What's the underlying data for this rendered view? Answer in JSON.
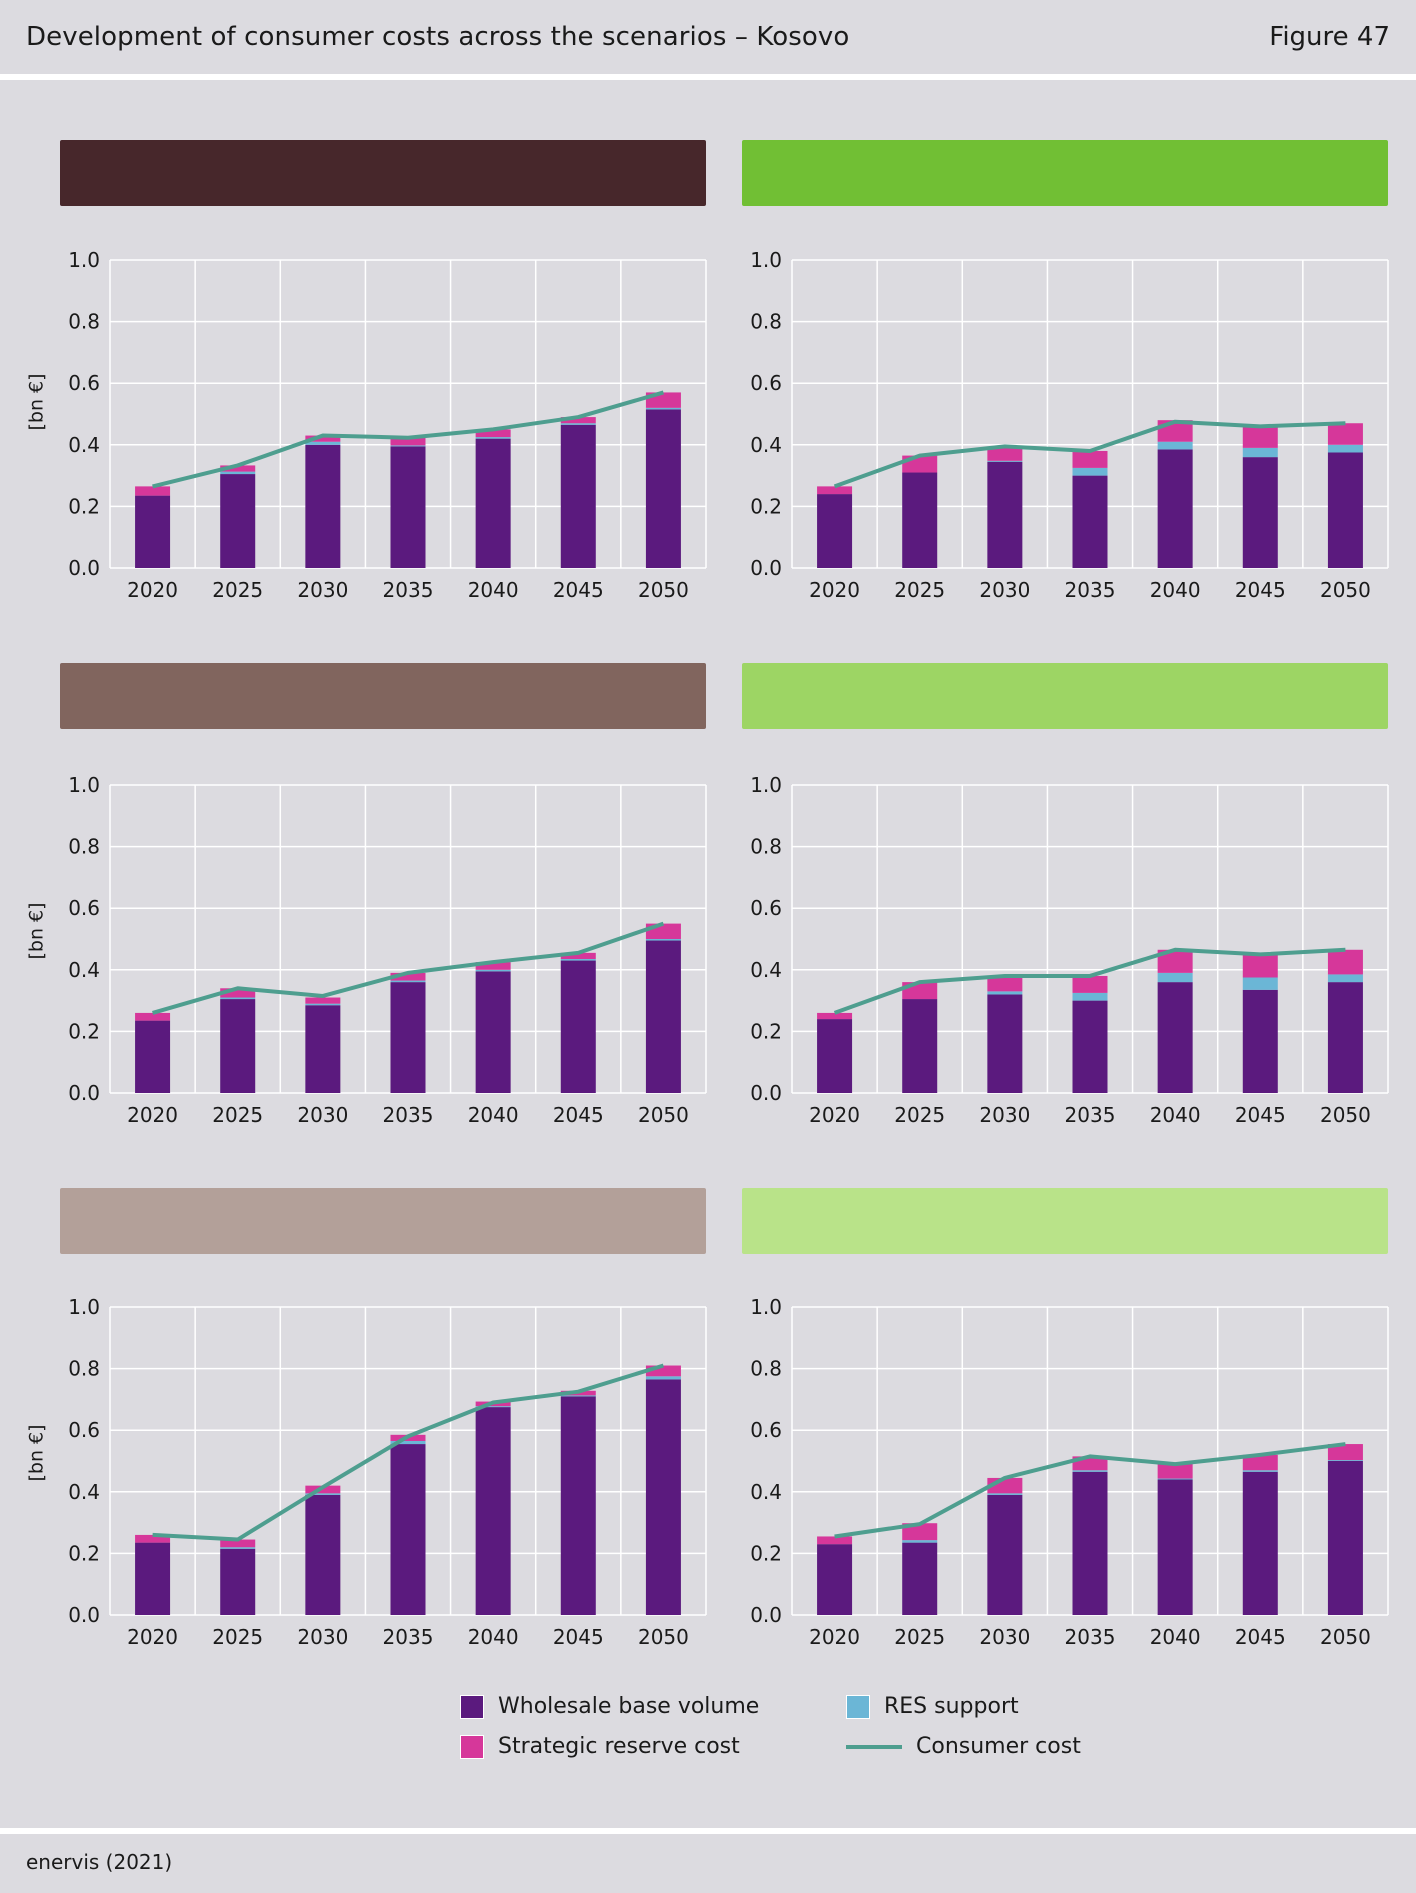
{
  "header": {
    "title": "Development of consumer costs across the scenarios – Kosovo",
    "figure_label": "Figure 47"
  },
  "footer": {
    "source": "enervis (2021)"
  },
  "colors": {
    "wholesale": "#5b1a7e",
    "res": "#6bb6d6",
    "reserve": "#d6379a",
    "consumer": "#4e9e8f",
    "grid": "#ffffff",
    "scenario_bars": [
      "#47272b",
      "#71bf34",
      "#81655e",
      "#9dd564",
      "#b3a099",
      "#b9e389"
    ]
  },
  "legend": {
    "wholesale": "Wholesale base volume",
    "reserve": "Strategic reserve cost",
    "res": "RES support",
    "consumer": "Consumer cost"
  },
  "chart_data": [
    {
      "type": "bar",
      "ylabel": "[bn €]",
      "ylim": [
        0,
        1.0
      ],
      "yticks": [
        "0.0",
        "0.2",
        "0.4",
        "0.6",
        "0.8",
        "1.0"
      ],
      "categories": [
        "2020",
        "2025",
        "2030",
        "2035",
        "2040",
        "2045",
        "2050"
      ],
      "series": [
        {
          "name": "Wholesale base volume",
          "values": [
            0.235,
            0.305,
            0.4,
            0.395,
            0.42,
            0.465,
            0.515
          ]
        },
        {
          "name": "RES support",
          "values": [
            0.0,
            0.008,
            0.01,
            0.003,
            0.005,
            0.005,
            0.005
          ]
        },
        {
          "name": "Strategic reserve cost",
          "values": [
            0.03,
            0.02,
            0.02,
            0.025,
            0.025,
            0.02,
            0.05
          ]
        },
        {
          "name": "Consumer cost",
          "values": [
            0.265,
            0.333,
            0.43,
            0.423,
            0.45,
            0.49,
            0.57
          ]
        }
      ],
      "grid": true
    },
    {
      "type": "bar",
      "ylabel": "",
      "ylim": [
        0,
        1.0
      ],
      "yticks": [
        "0.0",
        "0.2",
        "0.4",
        "0.6",
        "0.8",
        "1.0"
      ],
      "categories": [
        "2020",
        "2025",
        "2030",
        "2035",
        "2040",
        "2045",
        "2050"
      ],
      "series": [
        {
          "name": "Wholesale base volume",
          "values": [
            0.24,
            0.31,
            0.345,
            0.3,
            0.385,
            0.36,
            0.375
          ]
        },
        {
          "name": "RES support",
          "values": [
            0.0,
            0.0,
            0.003,
            0.025,
            0.025,
            0.03,
            0.025
          ]
        },
        {
          "name": "Strategic reserve cost",
          "values": [
            0.025,
            0.055,
            0.045,
            0.055,
            0.07,
            0.07,
            0.07
          ]
        },
        {
          "name": "Consumer cost",
          "values": [
            0.265,
            0.365,
            0.395,
            0.38,
            0.475,
            0.46,
            0.47
          ]
        }
      ],
      "grid": true
    },
    {
      "type": "bar",
      "ylabel": "[bn €]",
      "ylim": [
        0,
        1.0
      ],
      "yticks": [
        "0.0",
        "0.2",
        "0.4",
        "0.6",
        "0.8",
        "1.0"
      ],
      "categories": [
        "2020",
        "2025",
        "2030",
        "2035",
        "2040",
        "2045",
        "2050"
      ],
      "series": [
        {
          "name": "Wholesale base volume",
          "values": [
            0.235,
            0.305,
            0.285,
            0.36,
            0.395,
            0.43,
            0.495
          ]
        },
        {
          "name": "RES support",
          "values": [
            0.0,
            0.005,
            0.005,
            0.005,
            0.005,
            0.005,
            0.005
          ]
        },
        {
          "name": "Strategic reserve cost",
          "values": [
            0.025,
            0.03,
            0.02,
            0.025,
            0.025,
            0.02,
            0.05
          ]
        },
        {
          "name": "Consumer cost",
          "values": [
            0.26,
            0.34,
            0.315,
            0.39,
            0.425,
            0.455,
            0.55
          ]
        }
      ],
      "grid": true
    },
    {
      "type": "bar",
      "ylabel": "",
      "ylim": [
        0,
        1.0
      ],
      "yticks": [
        "0.0",
        "0.2",
        "0.4",
        "0.6",
        "0.8",
        "1.0"
      ],
      "categories": [
        "2020",
        "2025",
        "2030",
        "2035",
        "2040",
        "2045",
        "2050"
      ],
      "series": [
        {
          "name": "Wholesale base volume",
          "values": [
            0.24,
            0.305,
            0.32,
            0.3,
            0.36,
            0.335,
            0.36
          ]
        },
        {
          "name": "RES support",
          "values": [
            0.0,
            0.0,
            0.01,
            0.025,
            0.03,
            0.04,
            0.025
          ]
        },
        {
          "name": "Strategic reserve cost",
          "values": [
            0.02,
            0.055,
            0.05,
            0.055,
            0.075,
            0.075,
            0.08
          ]
        },
        {
          "name": "Consumer cost",
          "values": [
            0.26,
            0.36,
            0.38,
            0.38,
            0.465,
            0.45,
            0.465
          ]
        }
      ],
      "grid": true
    },
    {
      "type": "bar",
      "ylabel": "[bn €]",
      "ylim": [
        0,
        1.0
      ],
      "yticks": [
        "0.0",
        "0.2",
        "0.4",
        "0.6",
        "0.8",
        "1.0"
      ],
      "categories": [
        "2020",
        "2025",
        "2030",
        "2035",
        "2040",
        "2045",
        "2050"
      ],
      "series": [
        {
          "name": "Wholesale base volume",
          "values": [
            0.235,
            0.215,
            0.39,
            0.555,
            0.675,
            0.71,
            0.765
          ]
        },
        {
          "name": "RES support",
          "values": [
            0.0,
            0.005,
            0.005,
            0.01,
            0.003,
            0.003,
            0.01
          ]
        },
        {
          "name": "Strategic reserve cost",
          "values": [
            0.025,
            0.025,
            0.025,
            0.02,
            0.015,
            0.015,
            0.035
          ]
        },
        {
          "name": "Consumer cost",
          "values": [
            0.26,
            0.245,
            0.415,
            0.58,
            0.69,
            0.725,
            0.81
          ]
        }
      ],
      "grid": true
    },
    {
      "type": "bar",
      "ylabel": "",
      "ylim": [
        0,
        1.0
      ],
      "yticks": [
        "0.0",
        "0.2",
        "0.4",
        "0.6",
        "0.8",
        "1.0"
      ],
      "categories": [
        "2020",
        "2025",
        "2030",
        "2035",
        "2040",
        "2045",
        "2050"
      ],
      "series": [
        {
          "name": "Wholesale base volume",
          "values": [
            0.23,
            0.235,
            0.39,
            0.465,
            0.44,
            0.465,
            0.5
          ]
        },
        {
          "name": "RES support",
          "values": [
            0.0,
            0.008,
            0.005,
            0.005,
            0.003,
            0.005,
            0.003
          ]
        },
        {
          "name": "Strategic reserve cost",
          "values": [
            0.025,
            0.055,
            0.05,
            0.045,
            0.05,
            0.05,
            0.052
          ]
        },
        {
          "name": "Consumer cost",
          "values": [
            0.255,
            0.295,
            0.445,
            0.515,
            0.49,
            0.52,
            0.555
          ]
        }
      ],
      "grid": true
    }
  ]
}
